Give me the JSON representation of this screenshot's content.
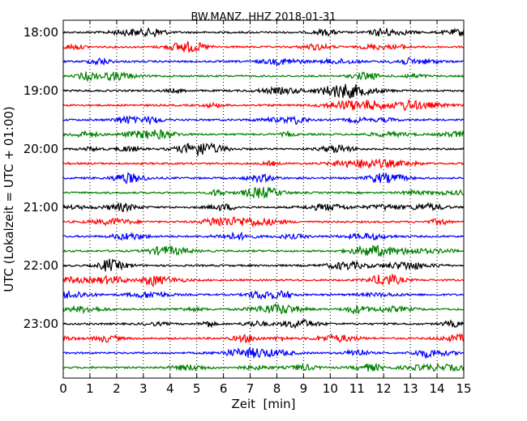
{
  "chart_data": {
    "type": "line",
    "title": "BW.MANZ..HHZ 2018-01-31",
    "xlabel": "Zeit  [min]",
    "ylabel": "UTC (Lokalzeit = UTC + 01:00)",
    "xlim": [
      0,
      15
    ],
    "x_ticks": [
      "0",
      "1",
      "2",
      "3",
      "4",
      "5",
      "6",
      "7",
      "8",
      "9",
      "10",
      "11",
      "12",
      "13",
      "14",
      "15"
    ],
    "y_ticks": [
      "18:00",
      "19:00",
      "20:00",
      "21:00",
      "22:00",
      "23:00"
    ],
    "grid": "vertical dotted",
    "trace_colors": [
      "#000000",
      "#ff0000",
      "#0000ff",
      "#008000"
    ],
    "trace_count": 24,
    "trace_interval_min": 15,
    "start_time": "18:00"
  }
}
